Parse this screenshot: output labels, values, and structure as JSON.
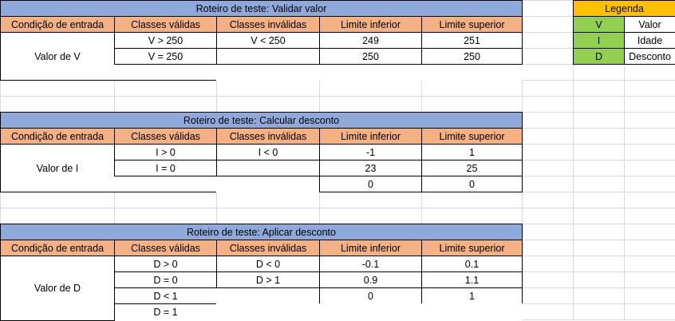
{
  "headers": [
    "Condição de entrada",
    "Classes válidas",
    "Classes inválidas",
    "Limite inferior",
    "Limite superior"
  ],
  "tables": [
    {
      "title": "Roteiro de teste: Validar valor",
      "condition": "Valor de V",
      "rows": [
        [
          "V > 250",
          "V < 250",
          "249",
          "251"
        ],
        [
          "V = 250",
          "",
          "250",
          "250"
        ],
        [
          "",
          "",
          "",
          ""
        ]
      ]
    },
    {
      "title": "Roteiro de teste: Calcular desconto",
      "condition": "Valor de I",
      "rows": [
        [
          "I > 0",
          "I < 0",
          "-1",
          "1"
        ],
        [
          "I = 0",
          "",
          "23",
          "25"
        ],
        [
          "",
          "",
          "0",
          "0"
        ]
      ]
    },
    {
      "title": "Roteiro de teste: Aplicar desconto",
      "condition": "Valor de D",
      "rows": [
        [
          "D > 0",
          "D < 0",
          "-0.1",
          "0.1"
        ],
        [
          "D = 0",
          "D > 1",
          "0.9",
          "1.1"
        ],
        [
          "D < 1",
          "",
          "0",
          "1"
        ],
        [
          "D = 1",
          "",
          "",
          ""
        ]
      ]
    }
  ],
  "legend": {
    "title": "Legenda",
    "items": [
      {
        "key": "V",
        "value": "Valor"
      },
      {
        "key": "I",
        "value": "Idade"
      },
      {
        "key": "D",
        "value": "Desconto"
      }
    ]
  },
  "colors": {
    "title_fill": "#8eaadb",
    "header_fill": "#f4b183",
    "legend_title_fill": "#ffc000",
    "legend_key_fill": "#92d050",
    "gridline": "#d9d9d9"
  }
}
